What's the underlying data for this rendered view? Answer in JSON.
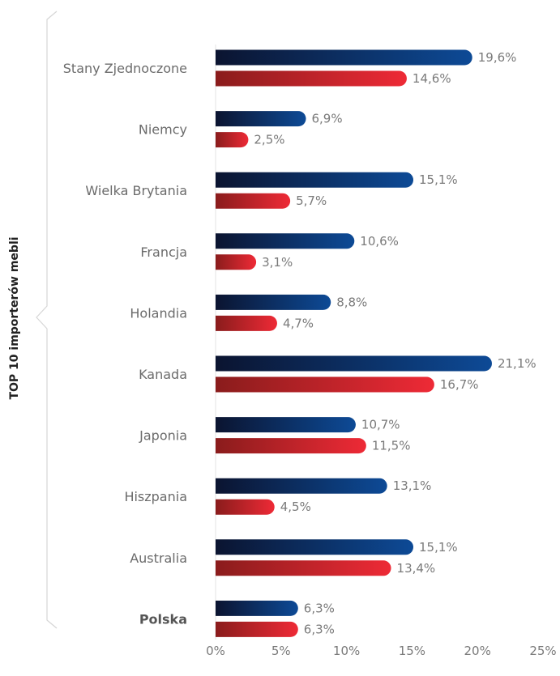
{
  "chart_data": {
    "type": "bar",
    "orientation": "horizontal",
    "side_title": "TOP 10 importerów mebli",
    "categories": [
      "Stany Zjednoczone",
      "Niemcy",
      "Wielka Brytania",
      "Francja",
      "Holandia",
      "Kanada",
      "Japonia",
      "Hiszpania",
      "Australia",
      "Polska"
    ],
    "highlight_category": "Polska",
    "series": [
      {
        "values": [
          19.6,
          6.9,
          15.1,
          10.6,
          8.8,
          21.1,
          10.7,
          13.1,
          15.1,
          6.3
        ],
        "labels": [
          "19,6%",
          "6,9%",
          "15,1%",
          "10,6%",
          "8,8%",
          "21,1%",
          "10,7%",
          "13,1%",
          "15,1%",
          "6,3%"
        ],
        "color_start": "#0b1430",
        "color_end": "#0d4a96"
      },
      {
        "values": [
          14.6,
          2.5,
          5.7,
          3.1,
          4.7,
          16.7,
          11.5,
          4.5,
          13.4,
          6.3
        ],
        "labels": [
          "14,6%",
          "2,5%",
          "5,7%",
          "3,1%",
          "4,7%",
          "16,7%",
          "11,5%",
          "4,5%",
          "13,4%",
          "6,3%"
        ],
        "color_start": "#8a1c1c",
        "color_end": "#ee2a36"
      }
    ],
    "xlim": [
      0,
      25
    ],
    "xticks": [
      0,
      5,
      10,
      15,
      20,
      25
    ],
    "xtick_labels": [
      "0%",
      "5%",
      "10%",
      "15%",
      "20%",
      "25%"
    ],
    "grid": false,
    "legend": "none"
  }
}
